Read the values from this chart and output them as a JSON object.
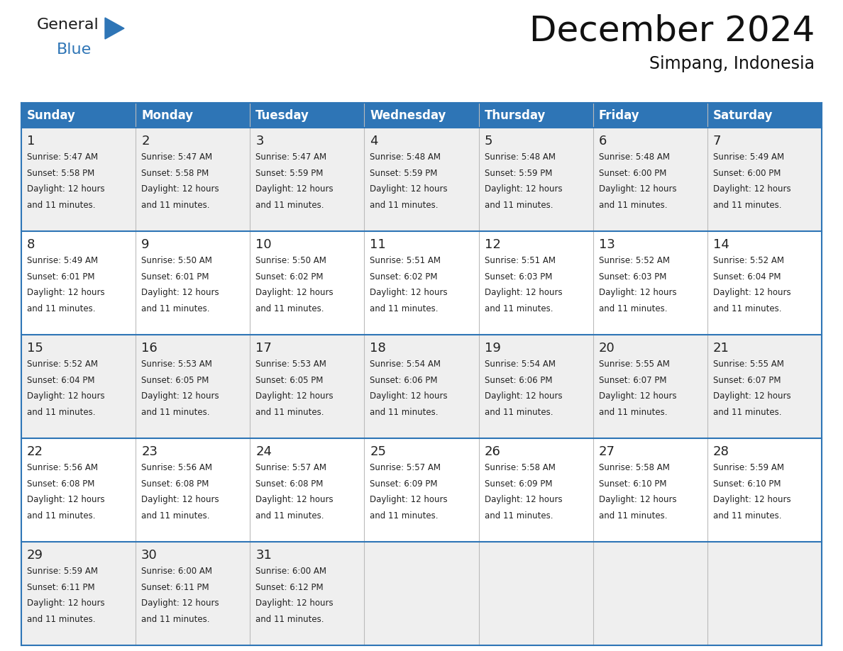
{
  "title": "December 2024",
  "subtitle": "Simpang, Indonesia",
  "header_bg_color": "#2E75B6",
  "header_text_color": "#FFFFFF",
  "day_names": [
    "Sunday",
    "Monday",
    "Tuesday",
    "Wednesday",
    "Thursday",
    "Friday",
    "Saturday"
  ],
  "row_bg_even": "#EFEFEF",
  "row_bg_odd": "#FFFFFF",
  "cell_border_color": "#2E75B6",
  "title_color": "#111111",
  "subtitle_color": "#111111",
  "logo_black": "#1a1a1a",
  "logo_blue": "#2E75B6",
  "days": [
    {
      "date": 1,
      "col": 0,
      "row": 0,
      "sunrise": "5:47 AM",
      "sunset": "5:58 PM"
    },
    {
      "date": 2,
      "col": 1,
      "row": 0,
      "sunrise": "5:47 AM",
      "sunset": "5:58 PM"
    },
    {
      "date": 3,
      "col": 2,
      "row": 0,
      "sunrise": "5:47 AM",
      "sunset": "5:59 PM"
    },
    {
      "date": 4,
      "col": 3,
      "row": 0,
      "sunrise": "5:48 AM",
      "sunset": "5:59 PM"
    },
    {
      "date": 5,
      "col": 4,
      "row": 0,
      "sunrise": "5:48 AM",
      "sunset": "5:59 PM"
    },
    {
      "date": 6,
      "col": 5,
      "row": 0,
      "sunrise": "5:48 AM",
      "sunset": "6:00 PM"
    },
    {
      "date": 7,
      "col": 6,
      "row": 0,
      "sunrise": "5:49 AM",
      "sunset": "6:00 PM"
    },
    {
      "date": 8,
      "col": 0,
      "row": 1,
      "sunrise": "5:49 AM",
      "sunset": "6:01 PM"
    },
    {
      "date": 9,
      "col": 1,
      "row": 1,
      "sunrise": "5:50 AM",
      "sunset": "6:01 PM"
    },
    {
      "date": 10,
      "col": 2,
      "row": 1,
      "sunrise": "5:50 AM",
      "sunset": "6:02 PM"
    },
    {
      "date": 11,
      "col": 3,
      "row": 1,
      "sunrise": "5:51 AM",
      "sunset": "6:02 PM"
    },
    {
      "date": 12,
      "col": 4,
      "row": 1,
      "sunrise": "5:51 AM",
      "sunset": "6:03 PM"
    },
    {
      "date": 13,
      "col": 5,
      "row": 1,
      "sunrise": "5:52 AM",
      "sunset": "6:03 PM"
    },
    {
      "date": 14,
      "col": 6,
      "row": 1,
      "sunrise": "5:52 AM",
      "sunset": "6:04 PM"
    },
    {
      "date": 15,
      "col": 0,
      "row": 2,
      "sunrise": "5:52 AM",
      "sunset": "6:04 PM"
    },
    {
      "date": 16,
      "col": 1,
      "row": 2,
      "sunrise": "5:53 AM",
      "sunset": "6:05 PM"
    },
    {
      "date": 17,
      "col": 2,
      "row": 2,
      "sunrise": "5:53 AM",
      "sunset": "6:05 PM"
    },
    {
      "date": 18,
      "col": 3,
      "row": 2,
      "sunrise": "5:54 AM",
      "sunset": "6:06 PM"
    },
    {
      "date": 19,
      "col": 4,
      "row": 2,
      "sunrise": "5:54 AM",
      "sunset": "6:06 PM"
    },
    {
      "date": 20,
      "col": 5,
      "row": 2,
      "sunrise": "5:55 AM",
      "sunset": "6:07 PM"
    },
    {
      "date": 21,
      "col": 6,
      "row": 2,
      "sunrise": "5:55 AM",
      "sunset": "6:07 PM"
    },
    {
      "date": 22,
      "col": 0,
      "row": 3,
      "sunrise": "5:56 AM",
      "sunset": "6:08 PM"
    },
    {
      "date": 23,
      "col": 1,
      "row": 3,
      "sunrise": "5:56 AM",
      "sunset": "6:08 PM"
    },
    {
      "date": 24,
      "col": 2,
      "row": 3,
      "sunrise": "5:57 AM",
      "sunset": "6:08 PM"
    },
    {
      "date": 25,
      "col": 3,
      "row": 3,
      "sunrise": "5:57 AM",
      "sunset": "6:09 PM"
    },
    {
      "date": 26,
      "col": 4,
      "row": 3,
      "sunrise": "5:58 AM",
      "sunset": "6:09 PM"
    },
    {
      "date": 27,
      "col": 5,
      "row": 3,
      "sunrise": "5:58 AM",
      "sunset": "6:10 PM"
    },
    {
      "date": 28,
      "col": 6,
      "row": 3,
      "sunrise": "5:59 AM",
      "sunset": "6:10 PM"
    },
    {
      "date": 29,
      "col": 0,
      "row": 4,
      "sunrise": "5:59 AM",
      "sunset": "6:11 PM"
    },
    {
      "date": 30,
      "col": 1,
      "row": 4,
      "sunrise": "6:00 AM",
      "sunset": "6:11 PM"
    },
    {
      "date": 31,
      "col": 2,
      "row": 4,
      "sunrise": "6:00 AM",
      "sunset": "6:12 PM"
    }
  ]
}
